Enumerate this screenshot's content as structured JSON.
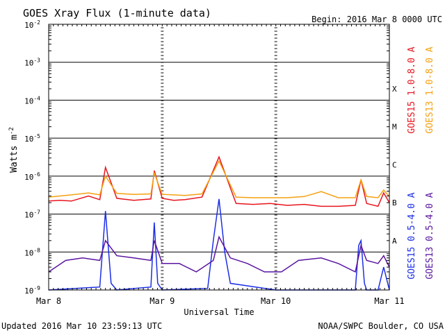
{
  "chart_data": {
    "type": "line",
    "title": "GOES Xray Flux (1-minute data)",
    "begin_label": "Begin:  2016 Mar 8 0000 UTC",
    "xlabel": "Universal Time",
    "ylabel": "Watts m",
    "ylabel_sup": "-2",
    "y_log_scale": true,
    "ylim": [
      1e-09,
      0.01
    ],
    "y_ticks": [
      {
        "base": "10",
        "exp": "-2",
        "value": 0.01
      },
      {
        "base": "10",
        "exp": "-3",
        "value": 0.001
      },
      {
        "base": "10",
        "exp": "-4",
        "value": 0.0001
      },
      {
        "base": "10",
        "exp": "-5",
        "value": 1e-05
      },
      {
        "base": "10",
        "exp": "-6",
        "value": 1e-06
      },
      {
        "base": "10",
        "exp": "-7",
        "value": 1e-07
      },
      {
        "base": "10",
        "exp": "-8",
        "value": 1e-08
      },
      {
        "base": "10",
        "exp": "-9",
        "value": 1e-09
      }
    ],
    "x_days": [
      0,
      3
    ],
    "x_ticks": [
      {
        "label": "Mar 8",
        "day": 0
      },
      {
        "label": "Mar 9",
        "day": 1
      },
      {
        "label": "Mar 10",
        "day": 2
      },
      {
        "label": "Mar 11",
        "day": 3
      }
    ],
    "flare_classes": [
      {
        "label": "X",
        "value": 0.0002
      },
      {
        "label": "M",
        "value": 2e-05
      },
      {
        "label": "C",
        "value": 2e-06
      },
      {
        "label": "B",
        "value": 2e-07
      },
      {
        "label": "A",
        "value": 2e-08
      }
    ],
    "series": [
      {
        "name": "GOES15 1.0-8.0 A",
        "color": "#e8141e",
        "x": [
          0,
          0.1,
          0.2,
          0.35,
          0.45,
          0.5,
          0.6,
          0.75,
          0.9,
          0.93,
          1.0,
          1.1,
          1.2,
          1.35,
          1.5,
          1.65,
          1.8,
          1.95,
          2.1,
          2.25,
          2.4,
          2.55,
          2.7,
          2.75,
          2.8,
          2.9,
          2.95,
          3.0
        ],
        "y": [
          2.2e-07,
          2.3e-07,
          2.2e-07,
          3e-07,
          2.4e-07,
          1.7e-06,
          2.6e-07,
          2.3e-07,
          2.5e-07,
          1.4e-06,
          2.6e-07,
          2.3e-07,
          2.4e-07,
          2.8e-07,
          3.2e-06,
          1.9e-07,
          1.8e-07,
          1.9e-07,
          1.7e-07,
          1.8e-07,
          1.6e-07,
          1.6e-07,
          1.7e-07,
          8e-07,
          1.9e-07,
          1.6e-07,
          3.6e-07,
          2e-07
        ]
      },
      {
        "name": "GOES13 1.0-8.0 A",
        "color": "#f5a00f",
        "x": [
          0,
          0.1,
          0.2,
          0.35,
          0.45,
          0.5,
          0.6,
          0.75,
          0.9,
          0.93,
          1.0,
          1.1,
          1.2,
          1.35,
          1.5,
          1.65,
          1.8,
          1.95,
          2.1,
          2.25,
          2.4,
          2.55,
          2.7,
          2.75,
          2.8,
          2.9,
          2.95,
          3.0
        ],
        "y": [
          2.8e-07,
          3e-07,
          3.2e-07,
          3.6e-07,
          3.2e-07,
          1e-06,
          3.5e-07,
          3.3e-07,
          3.4e-07,
          1.2e-06,
          3.3e-07,
          3.2e-07,
          3.1e-07,
          3.4e-07,
          2.5e-06,
          2.8e-07,
          2.7e-07,
          2.7e-07,
          2.7e-07,
          2.9e-07,
          3.9e-07,
          2.7e-07,
          2.7e-07,
          8e-07,
          2.9e-07,
          2.7e-07,
          4.3e-07,
          2.9e-07
        ]
      },
      {
        "name": "GOES15 0.5-4.0 A",
        "color": "#1b2ee6",
        "x": [
          0,
          0.45,
          0.5,
          0.55,
          0.6,
          0.9,
          0.93,
          0.96,
          1.0,
          1.4,
          1.45,
          1.5,
          1.55,
          1.6,
          2.0,
          2.7,
          2.73,
          2.75,
          2.78,
          2.8,
          2.9,
          2.95,
          3.0
        ],
        "y": [
          1e-09,
          1.2e-09,
          1.2e-07,
          1.5e-09,
          1e-09,
          1.2e-09,
          6e-08,
          1.5e-09,
          1e-09,
          1.1e-09,
          2e-08,
          2.5e-07,
          1e-08,
          1.5e-09,
          1e-09,
          1e-09,
          1.5e-08,
          2e-08,
          1.5e-09,
          1e-09,
          1e-09,
          4e-09,
          1e-09
        ]
      },
      {
        "name": "GOES13 0.5-4.0 A",
        "color": "#5a14a0",
        "x": [
          0,
          0.15,
          0.3,
          0.45,
          0.5,
          0.6,
          0.75,
          0.9,
          0.93,
          1.0,
          1.15,
          1.3,
          1.45,
          1.5,
          1.6,
          1.75,
          1.9,
          2.05,
          2.2,
          2.4,
          2.55,
          2.7,
          2.75,
          2.8,
          2.9,
          2.95,
          3.0
        ],
        "y": [
          3e-09,
          6e-09,
          7e-09,
          6e-09,
          2e-08,
          8e-09,
          7e-09,
          6e-09,
          2e-08,
          5e-09,
          5e-09,
          3e-09,
          6e-09,
          2.5e-08,
          7e-09,
          5e-09,
          3e-09,
          3e-09,
          6e-09,
          7e-09,
          5e-09,
          3e-09,
          1.5e-08,
          6e-09,
          5e-09,
          8e-09,
          4e-09
        ]
      }
    ],
    "legend_placement": "right, rotated",
    "grid": true
  },
  "footer": {
    "updated": "Updated 2016 Mar 10 23:59:13 UTC",
    "credit": "NOAA/SWPC Boulder, CO USA"
  }
}
